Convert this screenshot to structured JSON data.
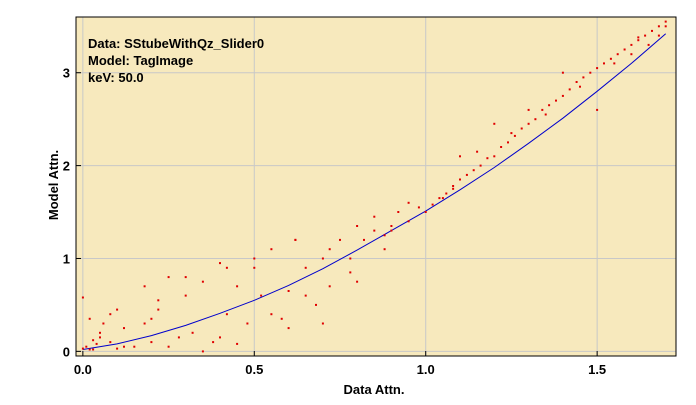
{
  "chart_data": {
    "type": "scatter",
    "xlabel": "Data Attn.",
    "ylabel": "Model Attn.",
    "xlim": [
      -0.02,
      1.73
    ],
    "ylim": [
      -0.05,
      3.6
    ],
    "x_ticks": [
      0.0,
      0.5,
      1.0,
      1.5
    ],
    "x_tick_labels": [
      "0.0",
      "0.5",
      "1.0",
      "1.5"
    ],
    "y_ticks": [
      0,
      1,
      2,
      3
    ],
    "y_tick_labels": [
      "0",
      "1",
      "2",
      "3"
    ],
    "grid": true,
    "annotations": [
      "Data: SStubeWithQz_Slider0",
      "Model: TagImage",
      "keV: 50.0"
    ],
    "background_color": "#f7e9bd",
    "grid_color": "#c8c8c8",
    "series": [
      {
        "type": "line",
        "color": "#0000cc",
        "x": [
          0.0,
          0.1,
          0.2,
          0.3,
          0.4,
          0.5,
          0.6,
          0.7,
          0.8,
          0.9,
          1.0,
          1.1,
          1.2,
          1.3,
          1.4,
          1.5,
          1.6,
          1.7
        ],
        "y": [
          0.02,
          0.08,
          0.17,
          0.28,
          0.41,
          0.55,
          0.71,
          0.89,
          1.09,
          1.3,
          1.51,
          1.74,
          1.98,
          2.24,
          2.51,
          2.8,
          3.1,
          3.42
        ]
      },
      {
        "type": "scatter",
        "color": "#e00000",
        "x": [
          0.0,
          0.01,
          0.02,
          0.03,
          0.04,
          0.05,
          0.06,
          0.08,
          0.1,
          0.12,
          0.15,
          0.18,
          0.2,
          0.22,
          0.25,
          0.28,
          0.3,
          0.32,
          0.35,
          0.38,
          0.4,
          0.42,
          0.45,
          0.48,
          0.5,
          0.52,
          0.55,
          0.58,
          0.6,
          0.62,
          0.65,
          0.68,
          0.7,
          0.72,
          0.75,
          0.78,
          0.8,
          0.82,
          0.85,
          0.88,
          0.9,
          0.92,
          0.95,
          0.98,
          1.0,
          1.02,
          1.04,
          1.06,
          1.08,
          1.1,
          1.12,
          1.14,
          1.16,
          1.18,
          1.2,
          1.22,
          1.24,
          1.26,
          1.28,
          1.3,
          1.32,
          1.34,
          1.36,
          1.38,
          1.4,
          1.42,
          1.44,
          1.46,
          1.48,
          1.5,
          1.52,
          1.54,
          1.56,
          1.58,
          1.6,
          1.62,
          1.64,
          1.66,
          1.68,
          1.7,
          0.02,
          0.05,
          0.08,
          0.12,
          0.2,
          0.25,
          0.3,
          0.4,
          0.42,
          0.55,
          0.6,
          0.65,
          0.7,
          0.8,
          0.85,
          0.9,
          1.05,
          1.1,
          1.2,
          1.3,
          1.4,
          1.5,
          1.6,
          1.65,
          1.7,
          0.0,
          0.03,
          0.1,
          0.18,
          0.22,
          0.35,
          0.45,
          0.5,
          0.62,
          0.72,
          0.78,
          0.88,
          0.95,
          1.08,
          1.15,
          1.25,
          1.35,
          1.45,
          1.55,
          1.62,
          1.68
        ],
        "y": [
          0.03,
          0.05,
          0.02,
          0.12,
          0.08,
          0.2,
          0.3,
          0.1,
          0.45,
          0.25,
          0.05,
          0.7,
          0.1,
          0.55,
          0.8,
          0.15,
          0.6,
          0.2,
          0.75,
          0.1,
          0.95,
          0.4,
          0.7,
          0.3,
          1.0,
          0.6,
          1.1,
          0.35,
          0.65,
          1.2,
          0.9,
          0.5,
          1.0,
          1.1,
          1.2,
          0.85,
          1.35,
          1.2,
          1.45,
          1.25,
          1.3,
          1.5,
          1.4,
          1.55,
          1.5,
          1.58,
          1.65,
          1.7,
          1.78,
          1.85,
          1.9,
          1.95,
          2.0,
          2.08,
          2.1,
          2.2,
          2.25,
          2.32,
          2.4,
          2.45,
          2.5,
          2.6,
          2.65,
          2.7,
          2.75,
          2.82,
          2.9,
          2.95,
          3.0,
          3.05,
          3.1,
          3.15,
          3.2,
          3.25,
          3.3,
          3.38,
          3.4,
          3.45,
          3.5,
          3.55,
          0.35,
          0.15,
          0.4,
          0.05,
          0.35,
          0.05,
          0.8,
          0.15,
          0.9,
          0.4,
          0.25,
          0.6,
          0.3,
          0.75,
          1.3,
          1.35,
          1.65,
          2.1,
          2.45,
          2.6,
          3.0,
          2.6,
          3.2,
          3.3,
          3.5,
          0.58,
          0.02,
          0.03,
          0.3,
          0.45,
          0.0,
          0.08,
          0.9,
          1.2,
          0.7,
          1.0,
          1.1,
          1.6,
          1.75,
          2.15,
          2.35,
          2.55,
          2.85,
          3.1,
          3.35,
          3.4
        ]
      }
    ]
  }
}
